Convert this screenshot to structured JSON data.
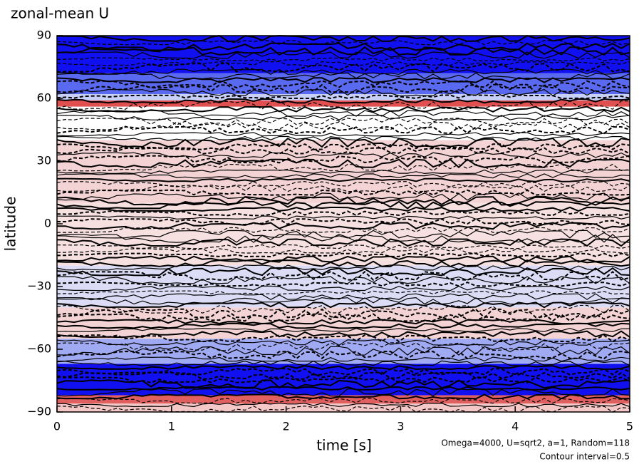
{
  "chart_data": {
    "type": "contour",
    "title": "zonal-mean U",
    "xlabel": "time [s]",
    "ylabel": "latitude",
    "xlim": [
      0,
      5
    ],
    "ylim": [
      -90,
      90
    ],
    "xticks": [
      0,
      1,
      2,
      3,
      4,
      5
    ],
    "yticks": [
      90,
      60,
      30,
      0,
      {
        "value": -30,
        "label": "−30"
      },
      {
        "value": -60,
        "label": "−60"
      },
      {
        "value": -90,
        "label": "−90"
      }
    ],
    "bands": [
      {
        "lat": [
          90,
          72
        ],
        "color": "#1010f0"
      },
      {
        "lat": [
          72,
          62
        ],
        "color": "#5a6af0"
      },
      {
        "lat": [
          62,
          57
        ],
        "color": "#c9d0f8"
      },
      {
        "lat": [
          59,
          56
        ],
        "color": "#e05050"
      },
      {
        "lat": [
          56,
          40
        ],
        "color": "#ffffff"
      },
      {
        "lat": [
          40,
          10
        ],
        "color": "#f3d3d3"
      },
      {
        "lat": [
          10,
          -20
        ],
        "color": "#f7e0e0"
      },
      {
        "lat": [
          -20,
          -40
        ],
        "color": "#dcdcf6"
      },
      {
        "lat": [
          -40,
          -55
        ],
        "color": "#f3d3d3"
      },
      {
        "lat": [
          -55,
          -67
        ],
        "color": "#a0aaf2"
      },
      {
        "lat": [
          -67,
          -82
        ],
        "color": "#1010f0"
      },
      {
        "lat": [
          -82,
          -86
        ],
        "color": "#e06060"
      },
      {
        "lat": [
          -86,
          -90
        ],
        "color": "#f5c8c8"
      }
    ],
    "annotations": [
      "Omega=4000, U=sqrt2, a=1, Random=118",
      "Contour interval=0.5"
    ]
  }
}
